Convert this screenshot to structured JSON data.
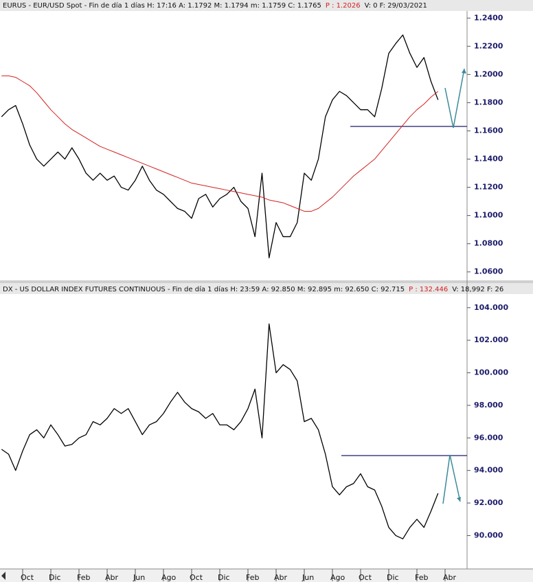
{
  "chart_data": [
    {
      "type": "line",
      "header": "EURUS - EUR/USD Spot - Fin de día 1 días  H: 17:16  A: 1.1792  M: 1.1794  m: 1.1759  C: 1.1765",
      "header_p": "P : 1.2026",
      "header_tail": "V: 0  F: 29/03/2021",
      "ylim": [
        1.055,
        1.245
      ],
      "yticks": [
        {
          "value": 1.06,
          "label": "1.0600"
        },
        {
          "value": 1.08,
          "label": "1.0800"
        },
        {
          "value": 1.1,
          "label": "1.1000"
        },
        {
          "value": 1.12,
          "label": "1.1200"
        },
        {
          "value": 1.14,
          "label": "1.1400"
        },
        {
          "value": 1.16,
          "label": "1.1600"
        },
        {
          "value": 1.18,
          "label": "1.1800"
        },
        {
          "value": 1.2,
          "label": "1.2000"
        },
        {
          "value": 1.22,
          "label": "1.2200"
        },
        {
          "value": 1.24,
          "label": "1.2400"
        }
      ],
      "series": [
        {
          "color": "#000000",
          "values": [
            1.17,
            1.175,
            1.178,
            1.165,
            1.15,
            1.14,
            1.135,
            1.14,
            1.145,
            1.14,
            1.148,
            1.14,
            1.13,
            1.125,
            1.13,
            1.125,
            1.128,
            1.12,
            1.118,
            1.125,
            1.135,
            1.125,
            1.118,
            1.115,
            1.11,
            1.105,
            1.103,
            1.098,
            1.112,
            1.115,
            1.106,
            1.112,
            1.115,
            1.12,
            1.11,
            1.105,
            1.085,
            1.13,
            1.07,
            1.095,
            1.085,
            1.085,
            1.095,
            1.13,
            1.125,
            1.14,
            1.17,
            1.182,
            1.188,
            1.185,
            1.18,
            1.175,
            1.175,
            1.17,
            1.19,
            1.215,
            1.222,
            1.228,
            1.215,
            1.205,
            1.212,
            1.195,
            1.182,
            null
          ]
        },
        {
          "color": "#d42020",
          "values": [
            1.199,
            1.199,
            1.198,
            1.195,
            1.192,
            1.187,
            1.181,
            1.175,
            1.17,
            1.165,
            1.161,
            1.158,
            1.155,
            1.152,
            1.149,
            1.147,
            1.145,
            1.143,
            1.141,
            1.139,
            1.137,
            1.135,
            1.133,
            1.131,
            1.129,
            1.127,
            1.125,
            1.123,
            1.122,
            1.121,
            1.12,
            1.119,
            1.118,
            1.117,
            1.116,
            1.115,
            1.114,
            1.113,
            1.111,
            1.11,
            1.109,
            1.107,
            1.105,
            1.103,
            1.103,
            1.105,
            1.109,
            1.113,
            1.118,
            1.123,
            1.128,
            1.132,
            1.136,
            1.14,
            1.146,
            1.152,
            1.158,
            1.164,
            1.17,
            1.175,
            1.179,
            1.184,
            1.188,
            null
          ]
        }
      ]
    },
    {
      "type": "line",
      "header": "DX - US DOLLAR INDEX FUTURES CONTINUOUS - Fin de día 1 días  H: 23:59  A: 92.850  M: 92.895  m: 92.650  C: 92.715",
      "header_p": "P : 132.446",
      "header_tail": "V: 18,992  F: 26",
      "ylim": [
        87.95,
        104.75
      ],
      "yticks": [
        {
          "value": 90,
          "label": "90.000"
        },
        {
          "value": 92,
          "label": "92.000"
        },
        {
          "value": 94,
          "label": "94.000"
        },
        {
          "value": 96,
          "label": "96.000"
        },
        {
          "value": 98,
          "label": "98.000"
        },
        {
          "value": 100,
          "label": "100.000"
        },
        {
          "value": 102,
          "label": "102.000"
        },
        {
          "value": 104,
          "label": "104.000"
        }
      ],
      "categories": [
        null,
        null,
        null,
        "Oct",
        null,
        null,
        null,
        "Dic",
        null,
        null,
        null,
        "Feb",
        null,
        null,
        null,
        "Abr",
        null,
        null,
        null,
        "Jun",
        null,
        null,
        null,
        "Ago",
        null,
        null,
        null,
        "Oct",
        null,
        null,
        null,
        "Dic",
        null,
        null,
        null,
        "Feb",
        null,
        null,
        null,
        "Abr",
        null,
        null,
        null,
        "Jun",
        null,
        null,
        null,
        "Ago",
        null,
        null,
        null,
        "Oct",
        null,
        null,
        null,
        "Dic",
        null,
        null,
        null,
        "Feb",
        null,
        null,
        null,
        "Abr"
      ],
      "series": [
        {
          "color": "#000000",
          "values": [
            95.3,
            95.0,
            94.0,
            95.2,
            96.2,
            96.5,
            96.0,
            96.8,
            96.2,
            95.5,
            95.6,
            96.0,
            96.2,
            97.0,
            96.8,
            97.2,
            97.8,
            97.5,
            97.8,
            97.0,
            96.2,
            96.8,
            97.0,
            97.5,
            98.2,
            98.8,
            98.2,
            97.8,
            97.6,
            97.2,
            97.5,
            96.8,
            96.8,
            96.5,
            97.0,
            97.8,
            99.0,
            96.0,
            103.0,
            100.0,
            100.5,
            100.2,
            99.5,
            97.0,
            97.2,
            96.5,
            95.0,
            93.0,
            92.5,
            93.0,
            93.2,
            93.8,
            93.0,
            92.8,
            91.8,
            90.5,
            90.0,
            89.8,
            90.5,
            91.0,
            90.5,
            91.5,
            92.6,
            null
          ]
        }
      ]
    }
  ]
}
